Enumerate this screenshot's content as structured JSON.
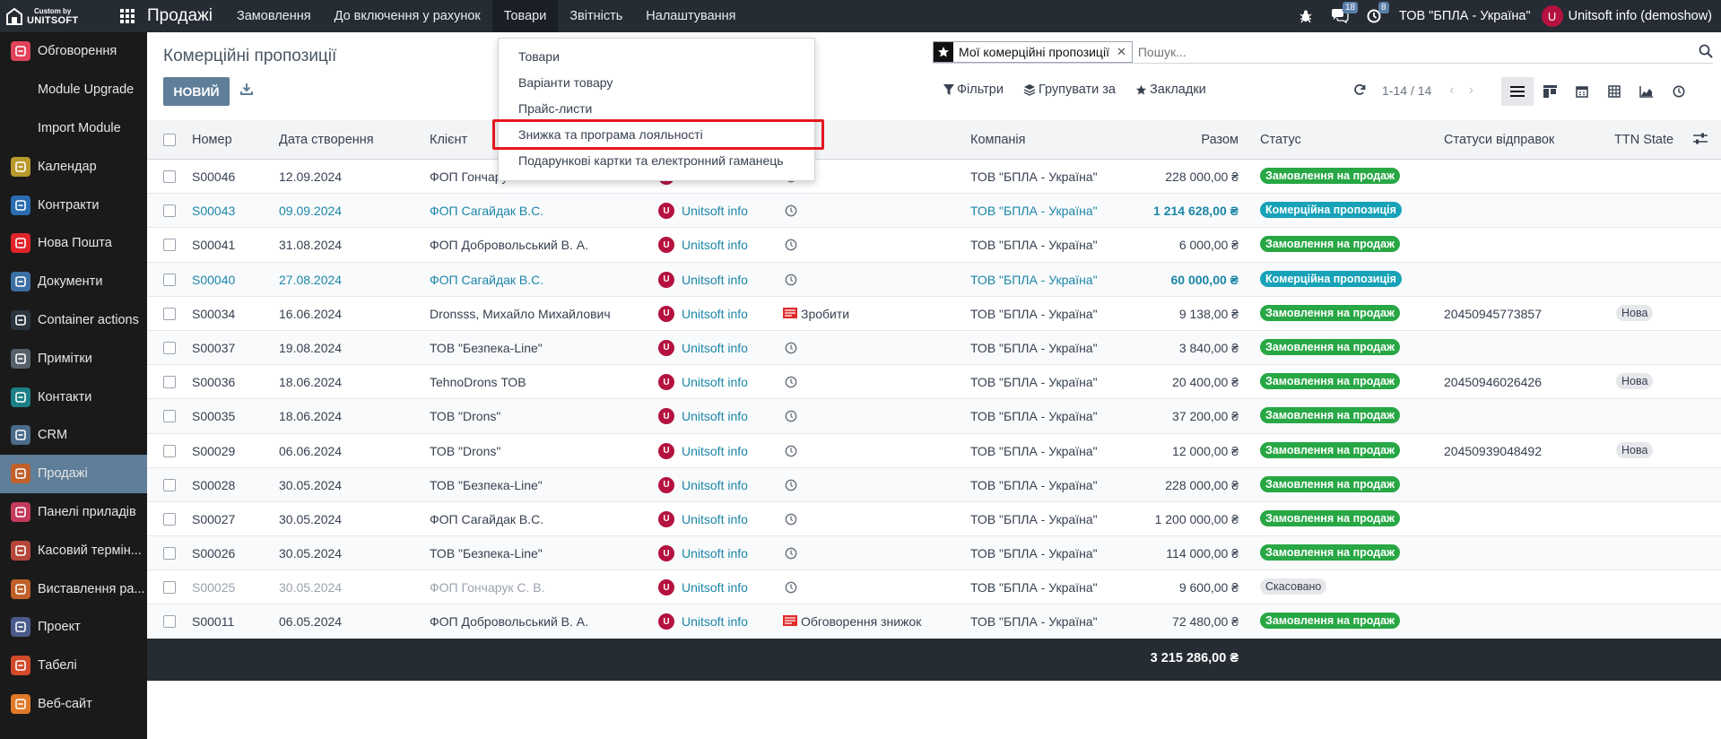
{
  "topbar": {
    "logo_small": "Custom by",
    "logo_big": "UNITSOFT",
    "app_name": "Продажі",
    "menu": [
      "Замовлення",
      "До включення у рахунок",
      "Товари",
      "Звітність",
      "Налаштування"
    ],
    "messages_count": "18",
    "activities_count": "8",
    "company": "ТОВ \"БПЛА - Україна\"",
    "avatar_letter": "U",
    "user": "Unitsoft info (demoshow)"
  },
  "sidebar": {
    "items": [
      {
        "label": "Обговорення",
        "icon": "discuss-icon",
        "color": "#e0435a"
      },
      {
        "label": "Module Upgrade",
        "icon": "",
        "color": ""
      },
      {
        "label": "Import Module",
        "icon": "",
        "color": ""
      },
      {
        "label": "Календар",
        "icon": "calendar-icon",
        "color": "#b89a2b"
      },
      {
        "label": "Контракти",
        "icon": "contracts-icon",
        "color": "#2b6cb0"
      },
      {
        "label": "Нова Пошта",
        "icon": "nova-poshta-icon",
        "color": "#e0242a"
      },
      {
        "label": "Документи",
        "icon": "documents-icon",
        "color": "#3b6fa3"
      },
      {
        "label": "Container actions",
        "icon": "container-icon",
        "color": "#2b3540"
      },
      {
        "label": "Примітки",
        "icon": "notes-icon",
        "color": "#55606b"
      },
      {
        "label": "Контакти",
        "icon": "contacts-icon",
        "color": "#1c7f86"
      },
      {
        "label": "CRM",
        "icon": "crm-icon",
        "color": "#4b6b8a"
      },
      {
        "label": "Продажі",
        "icon": "sales-icon",
        "color": "#c0602a"
      },
      {
        "label": "Панелі приладів",
        "icon": "dashboards-icon",
        "color": "#c43a5b"
      },
      {
        "label": "Касовий термін...",
        "icon": "pos-icon",
        "color": "#b5473a"
      },
      {
        "label": "Виставлення ра...",
        "icon": "invoicing-icon",
        "color": "#c0602a"
      },
      {
        "label": "Проект",
        "icon": "project-icon",
        "color": "#4a5a8a"
      },
      {
        "label": "Табелі",
        "icon": "timesheets-icon",
        "color": "#d14a2a"
      },
      {
        "label": "Веб-сайт",
        "icon": "website-icon",
        "color": "#e07a2a"
      }
    ]
  },
  "page": {
    "title": "Комерційні пропозиції",
    "new_button": "НОВИЙ"
  },
  "search": {
    "facet": "Мої комерційні пропозиції",
    "placeholder": "Пошук..."
  },
  "filters": {
    "filters_label": "Фільтри",
    "group_label": "Групувати за",
    "favorites_label": "Закладки"
  },
  "pager": {
    "range": "1-14 / 14"
  },
  "dropdown": {
    "items": [
      "Товари",
      "Варіанти товару",
      "Прайс-листи",
      "Знижка та програма лояльності",
      "Подарункові картки та електронний гаманець"
    ]
  },
  "table": {
    "columns": [
      "Номер",
      "Дата створення",
      "Клієнт",
      "Компанія",
      "Разом",
      "Статус",
      "Статуси відправок",
      "TTN State"
    ],
    "rows": [
      {
        "number": "S00046",
        "date": "12.09.2024",
        "client": "ФОП Гончарук С. В.",
        "salesperson": "Unitsoft info",
        "activity": "",
        "company": "ТОВ \"БПЛА - Україна\"",
        "total": "228 000,00 ₴",
        "status": "Замовлення на продаж",
        "shipment": "",
        "ttn": ""
      },
      {
        "number": "S00043",
        "date": "09.09.2024",
        "client": "ФОП Сагайдак В.С.",
        "salesperson": "Unitsoft info",
        "activity": "",
        "company": "ТОВ \"БПЛА - Україна\"",
        "total": "1 214 628,00 ₴",
        "status": "Комерційна пропозиція",
        "shipment": "",
        "ttn": ""
      },
      {
        "number": "S00041",
        "date": "31.08.2024",
        "client": "ФОП Добровольський В. А.",
        "salesperson": "Unitsoft info",
        "activity": "",
        "company": "ТОВ \"БПЛА - Україна\"",
        "total": "6 000,00 ₴",
        "status": "Замовлення на продаж",
        "shipment": "",
        "ttn": ""
      },
      {
        "number": "S00040",
        "date": "27.08.2024",
        "client": "ФОП Сагайдак В.С.",
        "salesperson": "Unitsoft info",
        "activity": "",
        "company": "ТОВ \"БПЛА - Україна\"",
        "total": "60 000,00 ₴",
        "status": "Комерційна пропозиція",
        "shipment": "",
        "ttn": ""
      },
      {
        "number": "S00034",
        "date": "16.06.2024",
        "client": "Dronsss, Михайло Михайлович",
        "salesperson": "Unitsoft info",
        "activity": "Зробити",
        "company": "ТОВ \"БПЛА - Україна\"",
        "total": "9 138,00 ₴",
        "status": "Замовлення на продаж",
        "shipment": "20450945773857",
        "ttn": "Нова"
      },
      {
        "number": "S00037",
        "date": "19.08.2024",
        "client": "ТОВ \"Безпека-Line\"",
        "salesperson": "Unitsoft info",
        "activity": "",
        "company": "ТОВ \"БПЛА - Україна\"",
        "total": "3 840,00 ₴",
        "status": "Замовлення на продаж",
        "shipment": "",
        "ttn": ""
      },
      {
        "number": "S00036",
        "date": "18.06.2024",
        "client": "TehnoDrons ТОВ",
        "salesperson": "Unitsoft info",
        "activity": "",
        "company": "ТОВ \"БПЛА - Україна\"",
        "total": "20 400,00 ₴",
        "status": "Замовлення на продаж",
        "shipment": "20450946026426",
        "ttn": "Нова"
      },
      {
        "number": "S00035",
        "date": "18.06.2024",
        "client": "ТОВ \"Drons\"",
        "salesperson": "Unitsoft info",
        "activity": "",
        "company": "ТОВ \"БПЛА - Україна\"",
        "total": "37 200,00 ₴",
        "status": "Замовлення на продаж",
        "shipment": "",
        "ttn": ""
      },
      {
        "number": "S00029",
        "date": "06.06.2024",
        "client": "ТОВ \"Drons\"",
        "salesperson": "Unitsoft info",
        "activity": "",
        "company": "ТОВ \"БПЛА - Україна\"",
        "total": "12 000,00 ₴",
        "status": "Замовлення на продаж",
        "shipment": "20450939048492",
        "ttn": "Нова"
      },
      {
        "number": "S00028",
        "date": "30.05.2024",
        "client": "ТОВ \"Безпека-Line\"",
        "salesperson": "Unitsoft info",
        "activity": "",
        "company": "ТОВ \"БПЛА - Україна\"",
        "total": "228 000,00 ₴",
        "status": "Замовлення на продаж",
        "shipment": "",
        "ttn": ""
      },
      {
        "number": "S00027",
        "date": "30.05.2024",
        "client": "ФОП Сагайдак В.С.",
        "salesperson": "Unitsoft info",
        "activity": "",
        "company": "ТОВ \"БПЛА - Україна\"",
        "total": "1 200 000,00 ₴",
        "status": "Замовлення на продаж",
        "shipment": "",
        "ttn": ""
      },
      {
        "number": "S00026",
        "date": "30.05.2024",
        "client": "ТОВ \"Безпека-Line\"",
        "salesperson": "Unitsoft info",
        "activity": "",
        "company": "ТОВ \"БПЛА - Україна\"",
        "total": "114 000,00 ₴",
        "status": "Замовлення на продаж",
        "shipment": "",
        "ttn": ""
      },
      {
        "number": "S00025",
        "date": "30.05.2024",
        "client": "ФОП Гончарук С. В.",
        "salesperson": "Unitsoft info",
        "activity": "",
        "company": "ТОВ \"БПЛА - Україна\"",
        "total": "9 600,00 ₴",
        "status": "Скасовано",
        "shipment": "",
        "ttn": ""
      },
      {
        "number": "S00011",
        "date": "06.05.2024",
        "client": "ФОП Добровольський В. А.",
        "salesperson": "Unitsoft info",
        "activity": "Обговорення знижок",
        "company": "ТОВ \"БПЛА - Україна\"",
        "total": "72 480,00 ₴",
        "status": "Замовлення на продаж",
        "shipment": "",
        "ttn": ""
      }
    ],
    "grand_total": "3 215 286,00 ₴"
  },
  "colors": {
    "topbar_bg": "#262c34",
    "sidebar_bg": "#1a1a1a",
    "accent": "#5e7e99",
    "link": "#1c86a8",
    "status_green": "#28a745",
    "status_blue": "#17a2b8",
    "highlight_red": "#e4171e"
  }
}
